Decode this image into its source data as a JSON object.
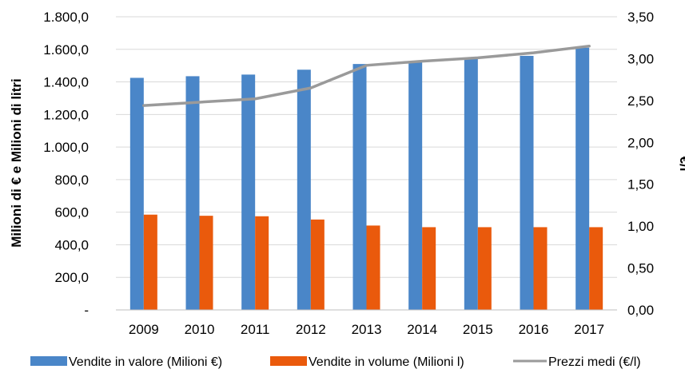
{
  "chart_data": {
    "type": "bar",
    "categories": [
      "2009",
      "2010",
      "2011",
      "2012",
      "2013",
      "2014",
      "2015",
      "2016",
      "2017"
    ],
    "series": [
      {
        "name": "Vendite in valore (Milioni €)",
        "type": "bar",
        "axis": "left",
        "color": "#4a86c8",
        "values": [
          1425,
          1435,
          1445,
          1475,
          1510,
          1525,
          1545,
          1560,
          1610
        ]
      },
      {
        "name": "Vendite in volume (Milioni l)",
        "type": "bar",
        "axis": "left",
        "color": "#ea5a0c",
        "values": [
          585,
          578,
          575,
          555,
          518,
          508,
          508,
          508,
          508
        ]
      },
      {
        "name": "Prezzi medi (€/l)",
        "type": "line",
        "axis": "right",
        "color": "#9a9a9a",
        "values": [
          2.44,
          2.48,
          2.52,
          2.65,
          2.92,
          2.97,
          3.01,
          3.07,
          3.15
        ]
      }
    ],
    "ylabel": "Milioni di € e Milioni di litri",
    "y2label": "€/l",
    "ylim": [
      0,
      1800
    ],
    "y2lim": [
      0,
      3.5
    ],
    "yticks": [
      "-",
      "200,0",
      "400,0",
      "600,0",
      "800,0",
      "1.000,0",
      "1.200,0",
      "1.400,0",
      "1.600,0",
      "1.800,0"
    ],
    "y2ticks": [
      "0,00",
      "0,50",
      "1,00",
      "1,50",
      "2,00",
      "2,50",
      "3,00",
      "3,50"
    ],
    "grid": true,
    "legend_position": "bottom"
  }
}
